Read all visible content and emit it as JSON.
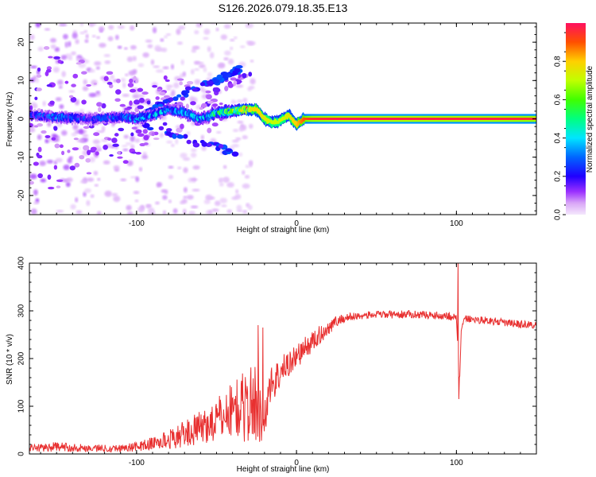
{
  "title": "S126.2026.079.18.35.E13",
  "chart_data": [
    {
      "type": "heatmap",
      "xlabel": "Height of straight line (km)",
      "ylabel": "Frequency (Hz)",
      "xlim": [
        -167,
        150
      ],
      "ylim": [
        -25,
        25
      ],
      "x_ticks": [
        -100,
        0,
        100
      ],
      "x_tick_labels": [
        "-100",
        "0",
        "100"
      ],
      "y_ticks": [
        -20,
        -10,
        0,
        10,
        20
      ],
      "y_tick_labels": [
        "-20",
        "-10",
        "0",
        "10",
        "20"
      ],
      "colorbar": {
        "label": "Normalized spectral amplitude",
        "range": [
          0,
          1
        ],
        "ticks": [
          0.0,
          0.2,
          0.4,
          0.6,
          0.8
        ],
        "tick_labels": [
          "0.0",
          "0.2",
          "0.4",
          "0.6",
          "0.8"
        ]
      },
      "ridge": {
        "description": "dominant frequency track",
        "x": [
          -167,
          -150,
          -130,
          -110,
          -100,
          -90,
          -80,
          -70,
          -60,
          -50,
          -40,
          -32,
          -25,
          -20,
          -15,
          -10,
          -5,
          0,
          5,
          10,
          30,
          60,
          90,
          120,
          150
        ],
        "freq": [
          1,
          0.5,
          0,
          0.5,
          0,
          1,
          2.5,
          1.5,
          0,
          1.5,
          2,
          2.5,
          2.5,
          0,
          -1,
          -0.5,
          1,
          -1.5,
          0,
          0,
          0,
          0,
          0,
          0,
          0
        ],
        "amplitude": [
          0.2,
          0.25,
          0.2,
          0.25,
          0.3,
          0.3,
          0.3,
          0.3,
          0.3,
          0.4,
          0.5,
          0.7,
          0.8,
          0.75,
          0.7,
          0.7,
          0.75,
          0.8,
          0.9,
          0.95,
          0.98,
          0.98,
          0.97,
          0.97,
          0.95
        ]
      }
    },
    {
      "type": "line",
      "xlabel": "Height of straight line (km)",
      "ylabel": "SNR (10 * v/v)",
      "xlim": [
        -167,
        150
      ],
      "ylim": [
        0,
        400
      ],
      "x_ticks": [
        -100,
        0,
        100
      ],
      "x_tick_labels": [
        "-100",
        "0",
        "100"
      ],
      "y_ticks": [
        0,
        100,
        200,
        300,
        400
      ],
      "y_tick_labels": [
        "0",
        "100",
        "200",
        "300",
        "400"
      ],
      "color": "#e83030",
      "series": [
        {
          "name": "SNR",
          "x": [
            -167,
            -150,
            -130,
            -110,
            -100,
            -90,
            -80,
            -70,
            -60,
            -50,
            -40,
            -30,
            -25,
            -20,
            -18,
            -15,
            -10,
            -5,
            0,
            5,
            10,
            15,
            20,
            25,
            30,
            40,
            50,
            60,
            70,
            80,
            90,
            95,
            100,
            101,
            102,
            103,
            105,
            110,
            120,
            130,
            140,
            150
          ],
          "mean": [
            12,
            15,
            12,
            12,
            15,
            22,
            30,
            42,
            55,
            70,
            95,
            100,
            110,
            60,
            130,
            150,
            170,
            190,
            205,
            220,
            235,
            250,
            265,
            278,
            285,
            290,
            292,
            292,
            293,
            292,
            290,
            290,
            285,
            215,
            150,
            260,
            285,
            282,
            280,
            275,
            272,
            270
          ],
          "noise": [
            8,
            10,
            8,
            8,
            10,
            14,
            20,
            28,
            35,
            45,
            60,
            80,
            90,
            40,
            50,
            40,
            35,
            30,
            25,
            25,
            22,
            20,
            15,
            12,
            10,
            8,
            8,
            8,
            8,
            8,
            8,
            10,
            8,
            0,
            0,
            0,
            8,
            8,
            8,
            8,
            8,
            8
          ],
          "spikes": [
            {
              "x": 101,
              "y": 400
            },
            {
              "x": 101.5,
              "y": 115
            },
            {
              "x": -21,
              "y": 265
            },
            {
              "x": -24,
              "y": 270
            }
          ]
        }
      ]
    }
  ]
}
